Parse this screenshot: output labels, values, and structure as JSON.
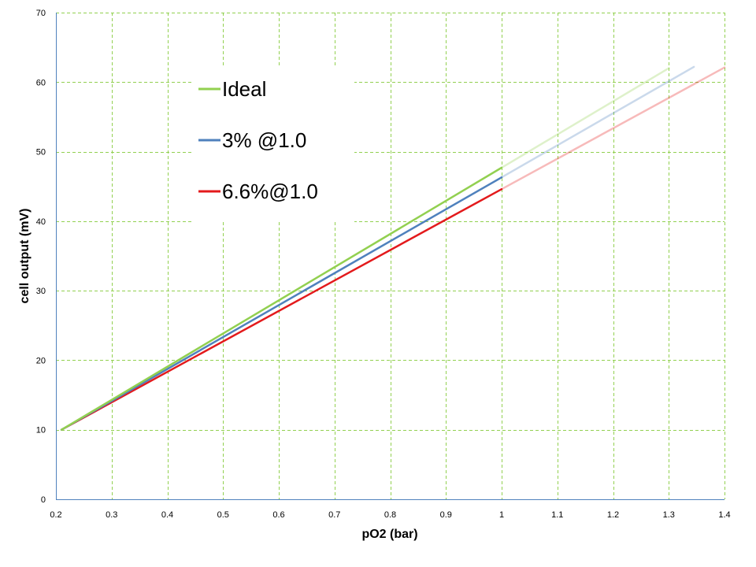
{
  "chart_data": {
    "type": "line",
    "xlabel": "pO2 (bar)",
    "ylabel": "cell output (mV)",
    "xlim": [
      0.2,
      1.4
    ],
    "ylim": [
      0,
      70
    ],
    "xticks": [
      0.2,
      0.3,
      0.4,
      0.5,
      0.6,
      0.7,
      0.8,
      0.9,
      1.0,
      1.1,
      1.2,
      1.3,
      1.4
    ],
    "xtick_labels": [
      "0.2",
      "0.3",
      "0.4",
      "0.5",
      "0.6",
      "0.7",
      "0.8",
      "0.9",
      "1",
      "1.1",
      "1.2",
      "1.3",
      "1.4"
    ],
    "yticks": [
      0,
      10,
      20,
      30,
      40,
      50,
      60,
      70
    ],
    "ytick_labels": [
      "0",
      "10",
      "20",
      "30",
      "40",
      "50",
      "60",
      "70"
    ],
    "grid": true,
    "grid_color": "#92d050",
    "legend_position": "top-left",
    "series": [
      {
        "name": "Ideal",
        "color": "#92d050",
        "solid": [
          [
            0.21,
            10.0
          ],
          [
            1.0,
            47.7
          ]
        ],
        "faded": [
          [
            1.0,
            47.7
          ],
          [
            1.3,
            62.0
          ]
        ]
      },
      {
        "name": "3% @1.0",
        "color": "#4f81bd",
        "solid": [
          [
            0.21,
            10.0
          ],
          [
            1.0,
            46.3
          ]
        ],
        "faded": [
          [
            1.0,
            46.3
          ],
          [
            1.345,
            62.2
          ]
        ]
      },
      {
        "name": "6.6%@1.0",
        "color": "#e31a1c",
        "solid": [
          [
            0.21,
            10.0
          ],
          [
            1.0,
            44.6
          ]
        ],
        "faded": [
          [
            1.0,
            44.6
          ],
          [
            1.4,
            62.1
          ]
        ]
      }
    ]
  }
}
